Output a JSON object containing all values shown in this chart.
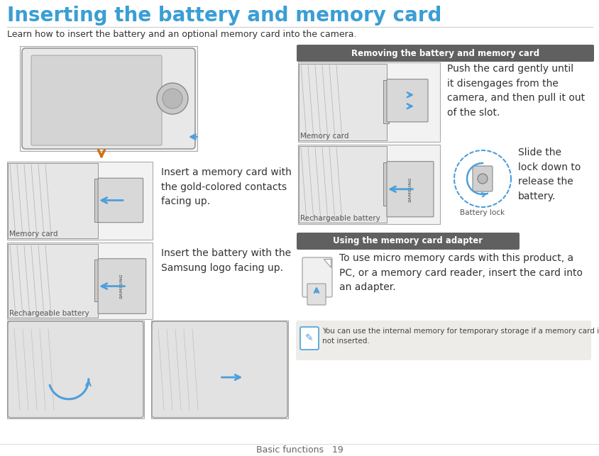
{
  "title": "Inserting the battery and memory card",
  "subtitle": "Learn how to insert the battery and an optional memory card into the camera.",
  "title_color": "#3b9ed4",
  "title_fontsize": 20,
  "subtitle_fontsize": 9,
  "bg_color": "#ffffff",
  "section1_label": "Removing the battery and memory card",
  "section1_bg": "#606060",
  "section1_color": "#ffffff",
  "section2_label": "Using the memory card adapter",
  "section2_bg": "#606060",
  "section2_color": "#ffffff",
  "memory_card_caption_left": "Memory card",
  "rechargeable_caption_left": "Rechargeable battery",
  "memory_card_caption_right": "Memory card",
  "rechargeable_caption_right": "Rechargeable battery",
  "battery_lock_label": "Battery lock",
  "insert_memory_text": "Insert a memory card with\nthe gold-colored contacts\nfacing up.",
  "insert_battery_text": "Insert the battery with the\nSamsung logo facing up.",
  "push_card_text": "Push the card gently until\nit disengages from the\ncamera, and then pull it out\nof the slot.",
  "slide_lock_text": "Slide the\nlock down to\nrelease the\nbattery.",
  "adapter_text": "To use micro memory cards with this product, a\nPC, or a memory card reader, insert the card into\nan adapter.",
  "note_text": "You can use the internal memory for temporary storage if a memory card is\nnot inserted.",
  "note_bg": "#eeece8",
  "footer_text": "Basic functions   19",
  "arrow_color": "#4d9fdc",
  "orange_arrow": "#d4700a",
  "dashed_color": "#4d9fdc",
  "img_border": "#aaaaaa",
  "img_bg": "#f2f2f2",
  "text_color": "#333333",
  "caption_color": "#555555",
  "line_sep_color": "#cccccc"
}
